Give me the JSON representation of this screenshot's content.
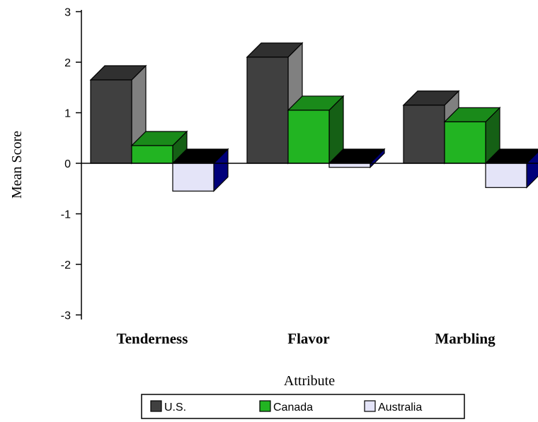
{
  "chart_data": {
    "type": "bar",
    "categories": [
      "Tenderness",
      "Flavor",
      "Marbling"
    ],
    "series": [
      {
        "name": "U.S.",
        "values": [
          1.65,
          2.1,
          1.15
        ],
        "front": "#404040",
        "side": "#808080",
        "top": "#303030"
      },
      {
        "name": "Canada",
        "values": [
          0.35,
          1.05,
          0.82
        ],
        "front": "#22b422",
        "side": "#156015",
        "top": "#1a8a1a"
      },
      {
        "name": "Australia",
        "values": [
          -0.55,
          -0.08,
          -0.48
        ],
        "front": "#e4e4f8",
        "side": "#00007a",
        "top": "#000000"
      }
    ],
    "xlabel": "Attribute",
    "ylabel": "Mean Score",
    "ylim": [
      -3,
      3
    ],
    "yticks": [
      "3",
      "2",
      "1",
      "0",
      "-1",
      "-2",
      "-3"
    ],
    "legend": "bottom",
    "grid": false
  }
}
